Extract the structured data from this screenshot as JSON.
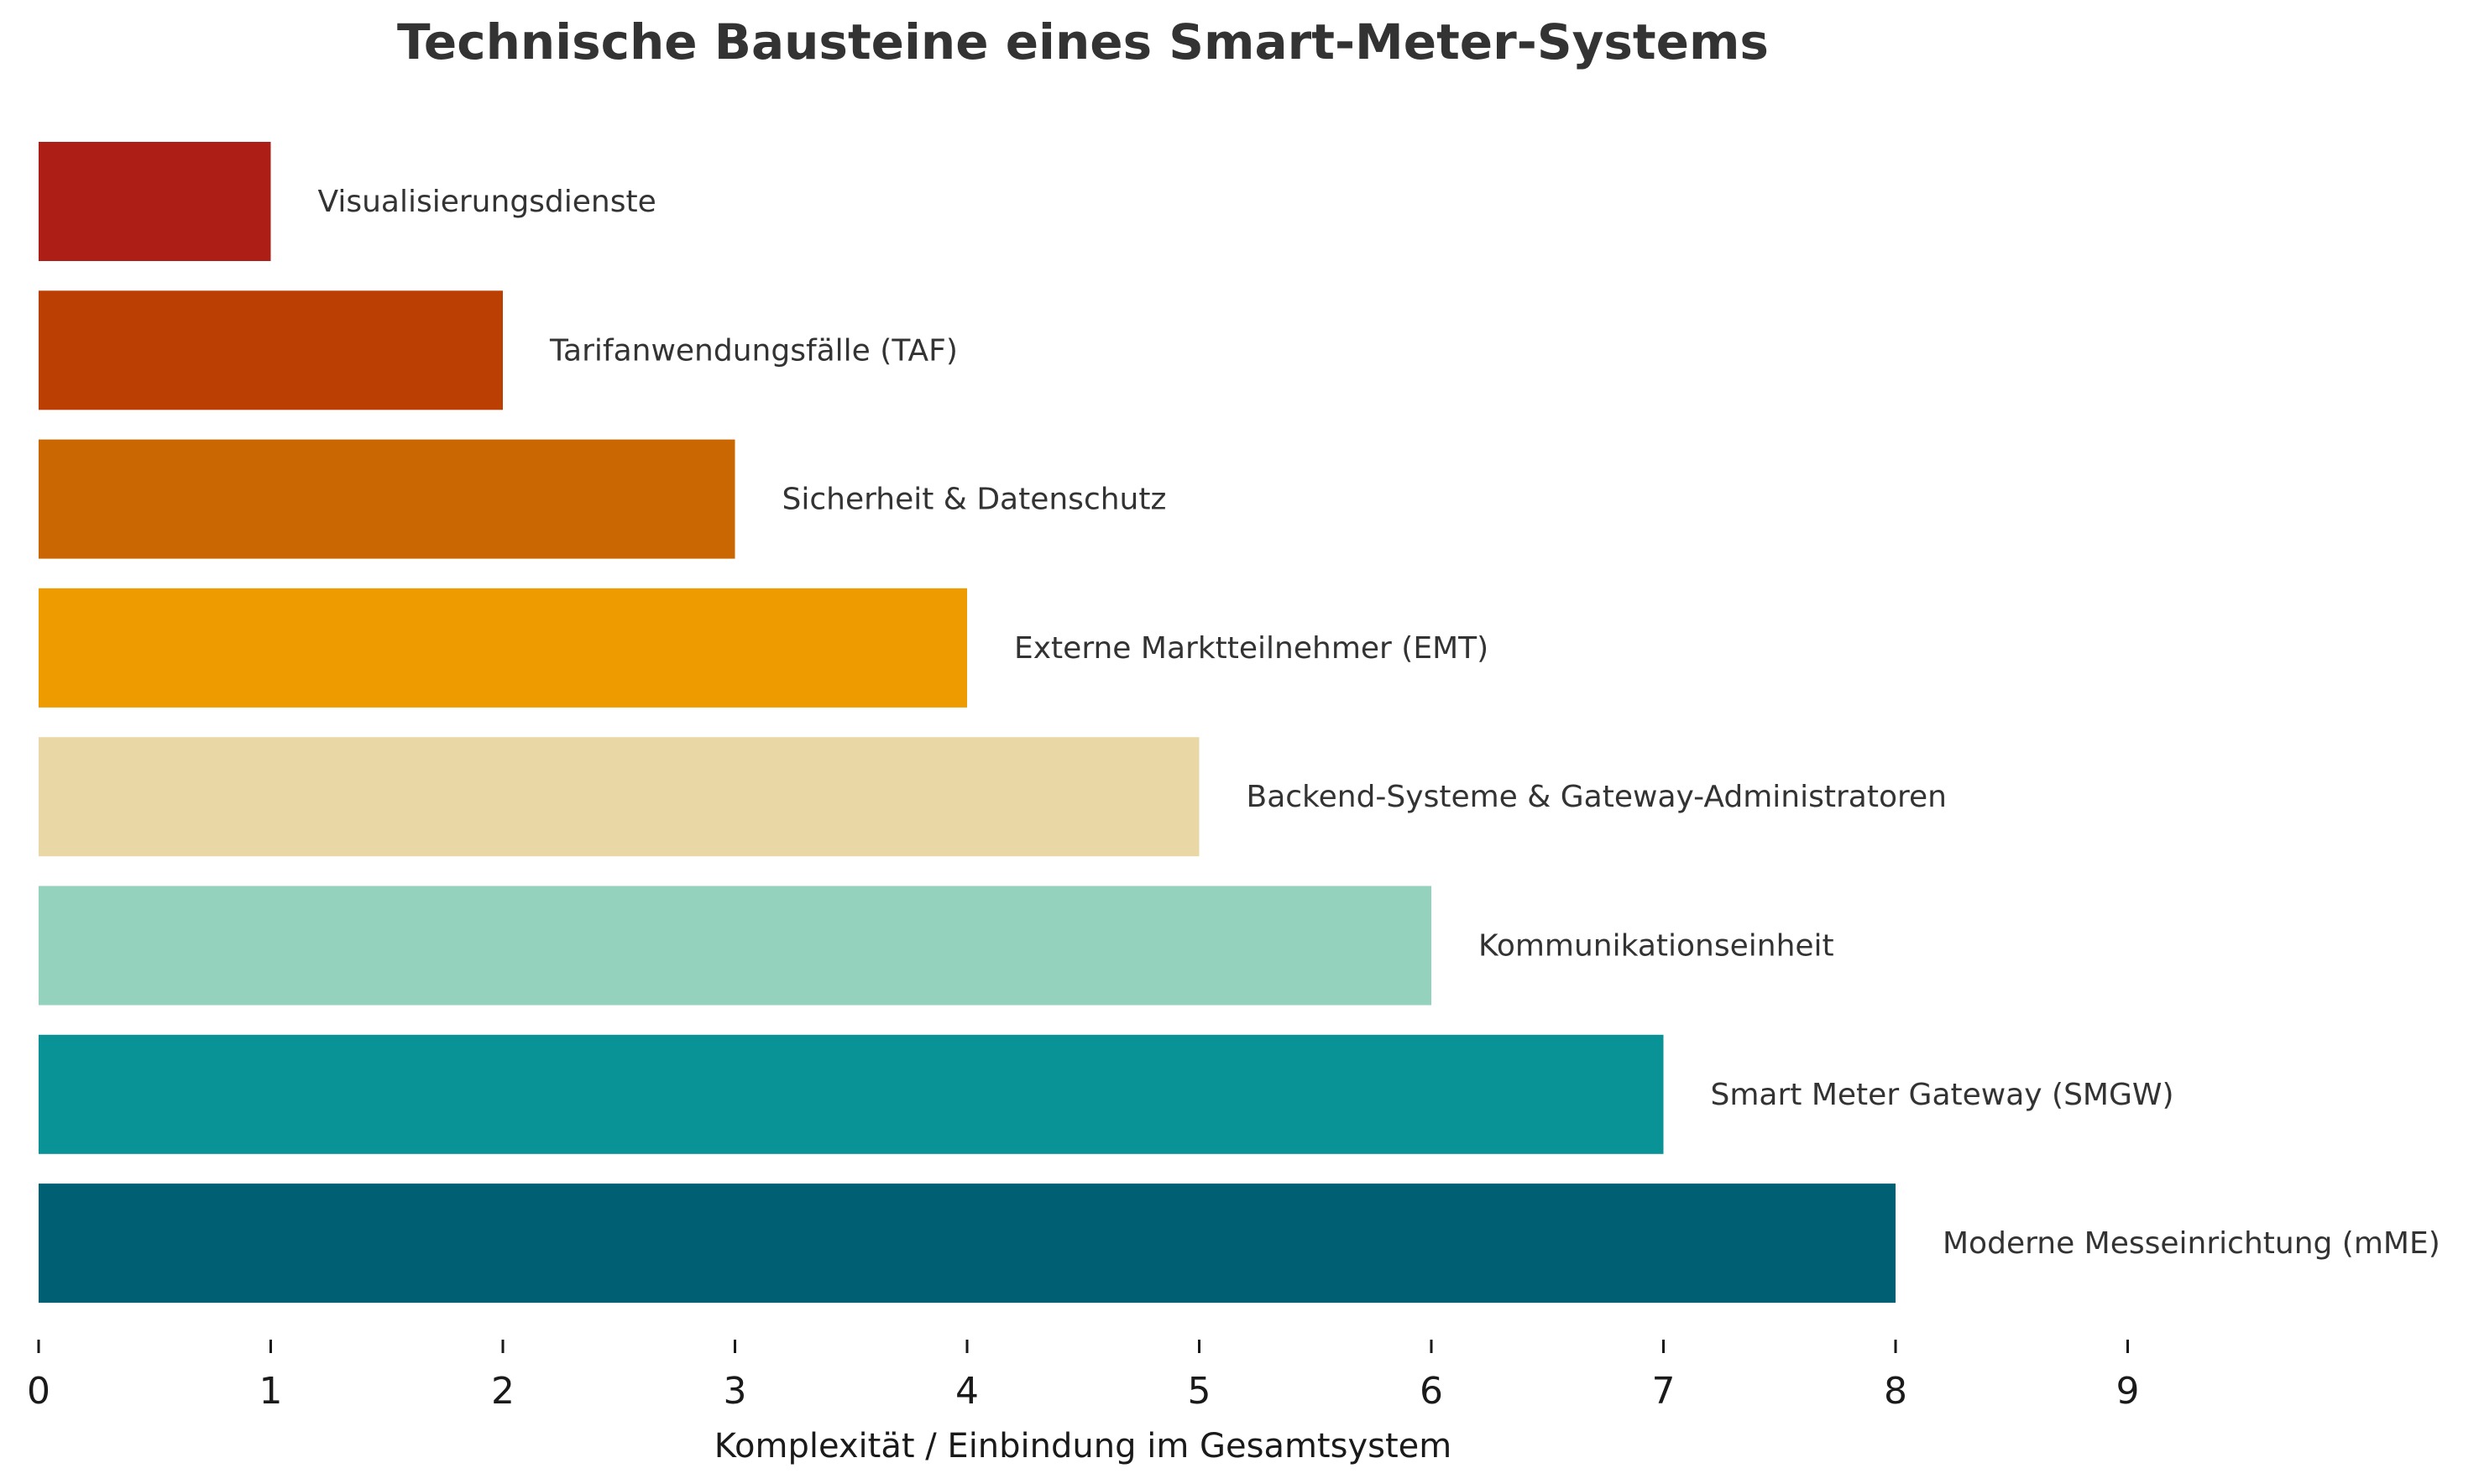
{
  "chart_data": {
    "type": "bar",
    "orientation": "horizontal",
    "title": "Technische Bausteine eines Smart-Meter-Systems",
    "xlabel": "Komplexität / Einbindung im Gesamtsystem",
    "ylabel": "",
    "xlim": [
      0,
      9
    ],
    "xticks": [
      "0",
      "1",
      "2",
      "3",
      "4",
      "5",
      "6",
      "7",
      "8",
      "9"
    ],
    "grid": false,
    "legend": "none",
    "bars": [
      {
        "label": "Visualisierungsdienste",
        "value": 1,
        "color": "#ad1f16"
      },
      {
        "label": "Tarifanwendungsfälle (TAF)",
        "value": 2,
        "color": "#bb3e03"
      },
      {
        "label": "Sicherheit & Datenschutz",
        "value": 3,
        "color": "#ca6702"
      },
      {
        "label": "Externe Marktteilnehmer (EMT)",
        "value": 4,
        "color": "#ee9b00"
      },
      {
        "label": "Backend-Systeme & Gateway-Administratoren",
        "value": 5,
        "color": "#e9d8a6"
      },
      {
        "label": "Kommunikationseinheit",
        "value": 6,
        "color": "#94d2bd"
      },
      {
        "label": "Smart Meter Gateway (SMGW)",
        "value": 7,
        "color": "#0a9396"
      },
      {
        "label": "Moderne Messeinrichtung (mME)",
        "value": 8,
        "color": "#005f73"
      }
    ]
  }
}
